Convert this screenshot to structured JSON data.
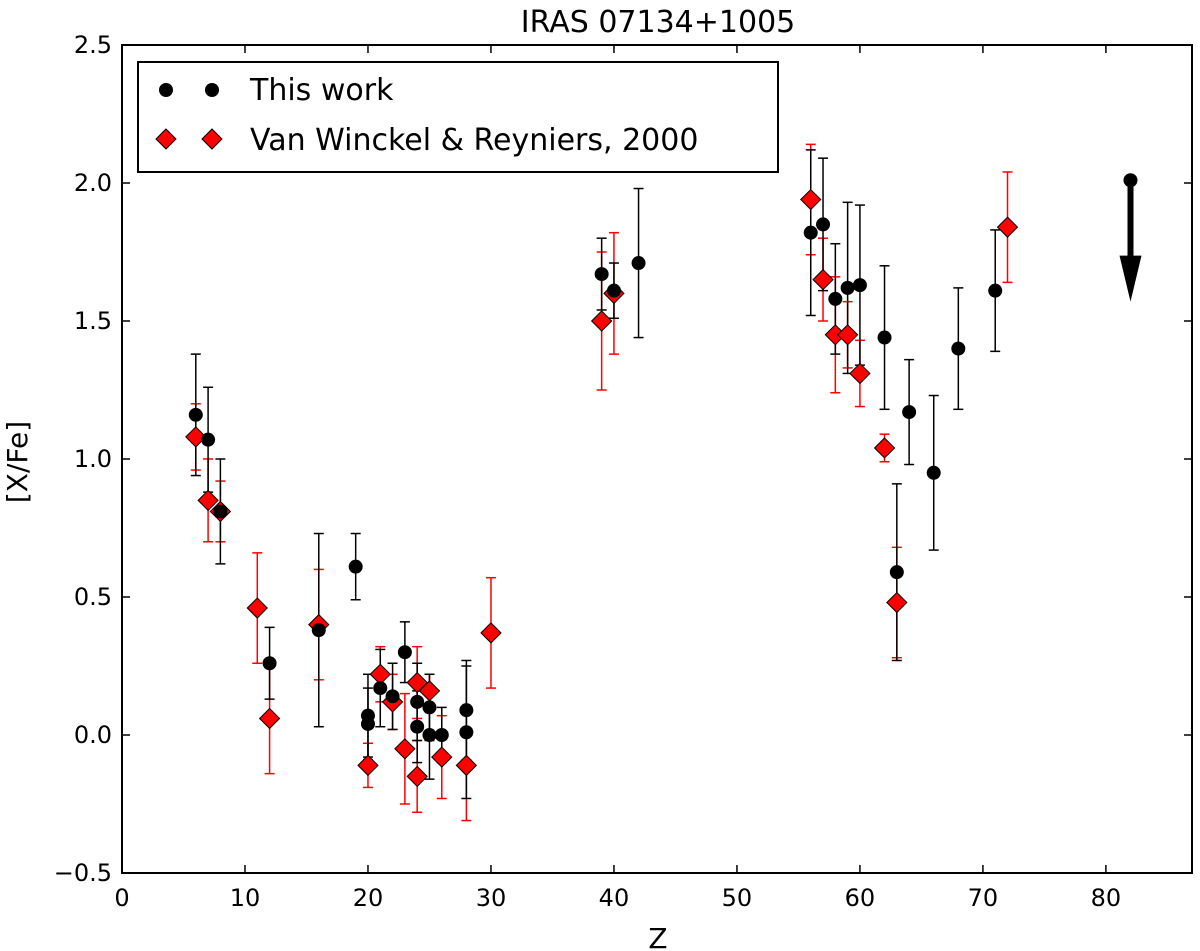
{
  "chart_data": {
    "type": "scatter",
    "title": "IRAS 07134+1005",
    "xlabel": "Z",
    "ylabel": "[X/Fe]",
    "xlim": [
      0,
      87
    ],
    "ylim": [
      -0.5,
      2.5
    ],
    "x_ticks": [
      0,
      10,
      20,
      30,
      40,
      50,
      60,
      70,
      80
    ],
    "y_ticks": [
      -0.5,
      0.0,
      0.5,
      1.0,
      1.5,
      2.0,
      2.5
    ],
    "x_tick_labels": [
      "0",
      "10",
      "20",
      "30",
      "40",
      "50",
      "60",
      "70",
      "80"
    ],
    "y_tick_labels": [
      "−0.5",
      "0.0",
      "0.5",
      "1.0",
      "1.5",
      "2.0",
      "2.5"
    ],
    "grid": false,
    "legend_position": "top-left",
    "series": [
      {
        "name": "This work",
        "marker": "circle",
        "color": "#000000",
        "errcolor": "#000000",
        "points": [
          {
            "x": 6,
            "y": 1.16,
            "err": 0.22
          },
          {
            "x": 7,
            "y": 1.07,
            "err": 0.19
          },
          {
            "x": 8,
            "y": 0.81,
            "err": 0.19
          },
          {
            "x": 12,
            "y": 0.26,
            "err": 0.13
          },
          {
            "x": 16,
            "y": 0.38,
            "err": 0.35
          },
          {
            "x": 19,
            "y": 0.61,
            "err": 0.12
          },
          {
            "x": 20,
            "y": 0.07,
            "err": 0.15
          },
          {
            "x": 20,
            "y": 0.04,
            "err": 0.13
          },
          {
            "x": 21,
            "y": 0.17,
            "err": 0.14
          },
          {
            "x": 22,
            "y": 0.14,
            "err": 0.12
          },
          {
            "x": 23,
            "y": 0.3,
            "err": 0.11
          },
          {
            "x": 24,
            "y": 0.12,
            "err": 0.14
          },
          {
            "x": 24,
            "y": 0.03,
            "err": 0.13
          },
          {
            "x": 25,
            "y": 0.1,
            "err": 0.12
          },
          {
            "x": 25,
            "y": 0.0,
            "err": 0.16
          },
          {
            "x": 26,
            "y": 0.0,
            "err": 0.1
          },
          {
            "x": 28,
            "y": 0.09,
            "err": 0.18
          },
          {
            "x": 28,
            "y": 0.01,
            "err": 0.24
          },
          {
            "x": 39,
            "y": 1.67,
            "err": 0.13
          },
          {
            "x": 40,
            "y": 1.61,
            "err": 0.1
          },
          {
            "x": 42,
            "y": 1.71,
            "err": 0.27
          },
          {
            "x": 56,
            "y": 1.82,
            "err": 0.3
          },
          {
            "x": 57,
            "y": 1.85,
            "err": 0.24
          },
          {
            "x": 58,
            "y": 1.58,
            "err": 0.2
          },
          {
            "x": 59,
            "y": 1.62,
            "err": 0.31
          },
          {
            "x": 60,
            "y": 1.63,
            "err": 0.29
          },
          {
            "x": 62,
            "y": 1.44,
            "err": 0.26
          },
          {
            "x": 63,
            "y": 0.59,
            "err": 0.32
          },
          {
            "x": 64,
            "y": 1.17,
            "err": 0.19
          },
          {
            "x": 66,
            "y": 0.95,
            "err": 0.28
          },
          {
            "x": 68,
            "y": 1.4,
            "err": 0.22
          },
          {
            "x": 71,
            "y": 1.61,
            "err": 0.22
          }
        ]
      },
      {
        "name": "Van Winckel & Reyniers, 2000",
        "marker": "diamond",
        "color": "#ff0000",
        "errcolor": "#ff0000",
        "points": [
          {
            "x": 6,
            "y": 1.08,
            "err": 0.12
          },
          {
            "x": 7,
            "y": 0.85,
            "err": 0.15
          },
          {
            "x": 8,
            "y": 0.81,
            "err": 0.11
          },
          {
            "x": 11,
            "y": 0.46,
            "err": 0.2
          },
          {
            "x": 12,
            "y": 0.06,
            "err": 0.2
          },
          {
            "x": 16,
            "y": 0.4,
            "err": 0.2
          },
          {
            "x": 20,
            "y": -0.11,
            "err": 0.08
          },
          {
            "x": 21,
            "y": 0.22,
            "err": 0.1
          },
          {
            "x": 22,
            "y": 0.12,
            "err": 0.1
          },
          {
            "x": 23,
            "y": -0.05,
            "err": 0.2
          },
          {
            "x": 24,
            "y": 0.19,
            "err": 0.13
          },
          {
            "x": 24,
            "y": -0.15,
            "err": 0.13
          },
          {
            "x": 25,
            "y": 0.16,
            "err": 0.06
          },
          {
            "x": 26,
            "y": -0.08,
            "err": 0.15
          },
          {
            "x": 28,
            "y": -0.11,
            "err": 0.2
          },
          {
            "x": 30,
            "y": 0.37,
            "err": 0.2
          },
          {
            "x": 39,
            "y": 1.5,
            "err": 0.25
          },
          {
            "x": 40,
            "y": 1.6,
            "err": 0.22
          },
          {
            "x": 56,
            "y": 1.94,
            "err": 0.2
          },
          {
            "x": 57,
            "y": 1.65,
            "err": 0.15
          },
          {
            "x": 58,
            "y": 1.45,
            "err": 0.21
          },
          {
            "x": 59,
            "y": 1.45,
            "err": 0.12
          },
          {
            "x": 60,
            "y": 1.31,
            "err": 0.12
          },
          {
            "x": 62,
            "y": 1.04,
            "err": 0.05
          },
          {
            "x": 63,
            "y": 0.48,
            "err": 0.2
          },
          {
            "x": 72,
            "y": 1.84,
            "err": 0.2
          }
        ]
      }
    ],
    "upper_limits": [
      {
        "x": 82,
        "y": 2.01,
        "arrow_to": 1.57,
        "color": "#000000"
      }
    ]
  }
}
